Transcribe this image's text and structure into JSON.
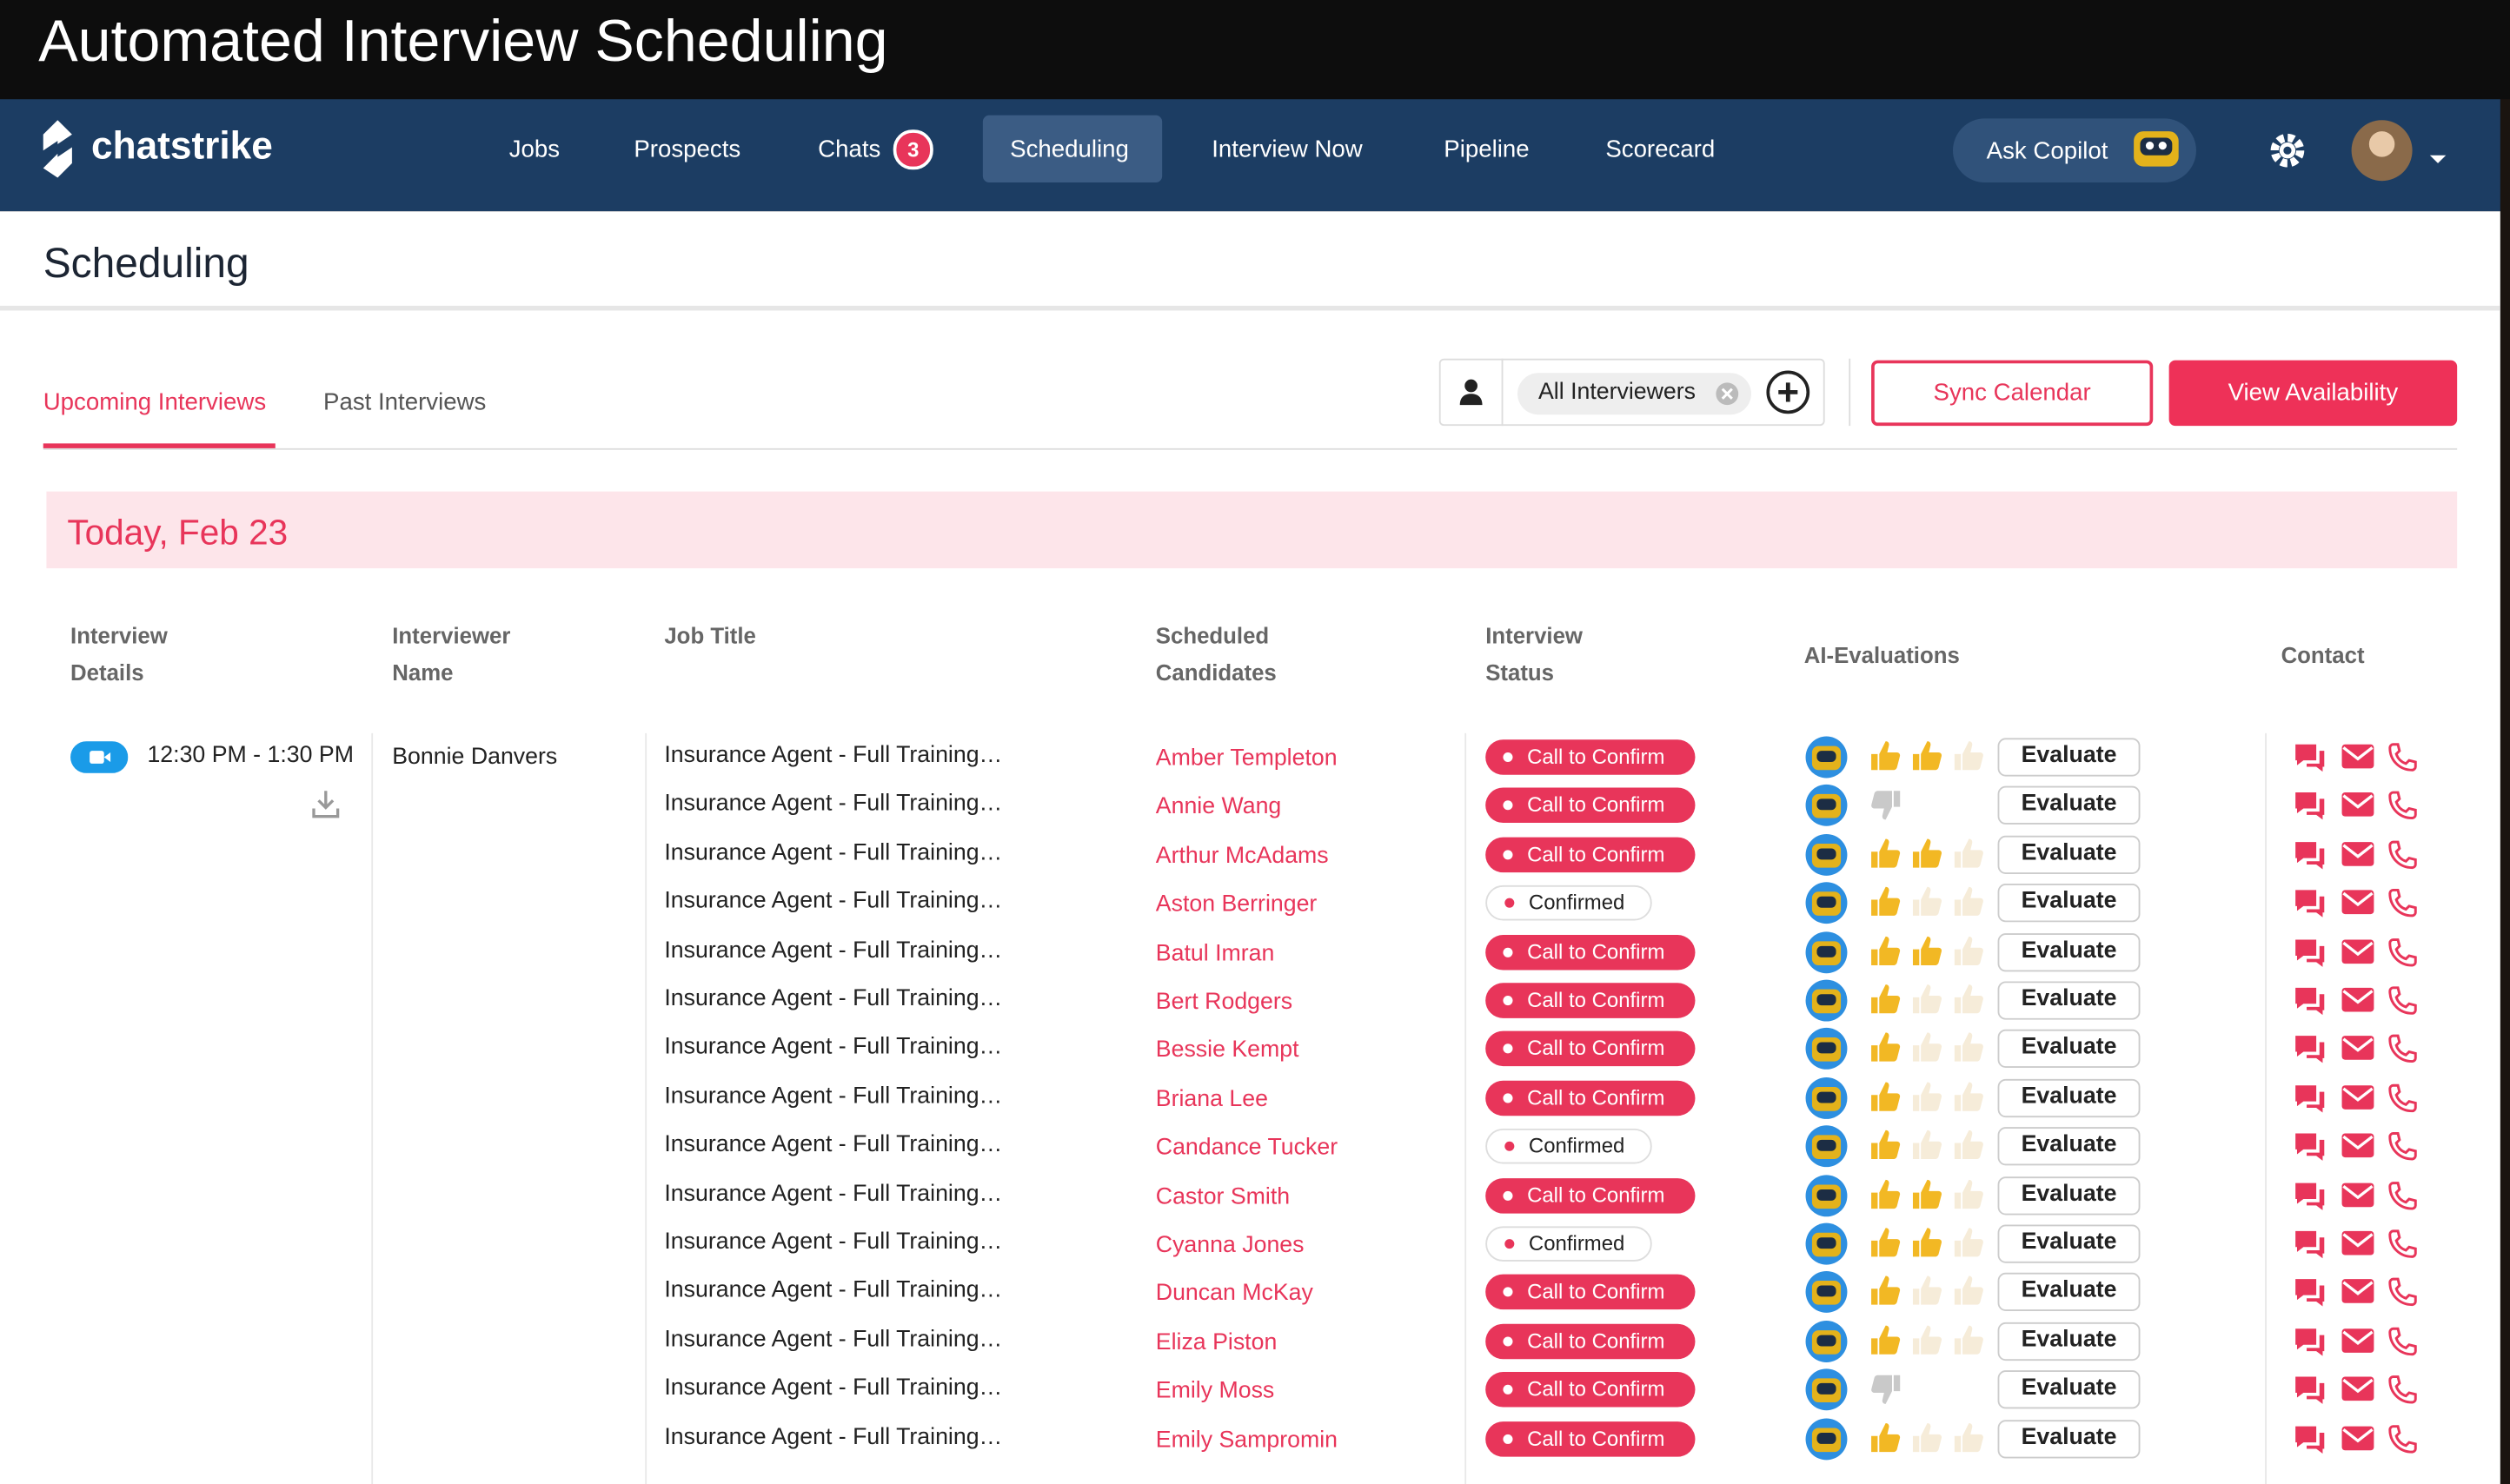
{
  "header": {
    "title": "Automated Interview Scheduling"
  },
  "nav": {
    "brand": "chatstrike",
    "items": [
      "Jobs",
      "Prospects",
      "Chats",
      "Scheduling",
      "Interview Now",
      "Pipeline",
      "Scorecard"
    ],
    "chats_badge": 3,
    "copilot": "Ask Copilot"
  },
  "page": {
    "title": "Scheduling",
    "tabs": [
      "Upcoming Interviews",
      "Past Interviews"
    ],
    "filter": "All Interviewers",
    "buttons": [
      "Sync Calendar",
      "View Availability"
    ],
    "date": "Today, Feb 23"
  },
  "table": {
    "columns": [
      "Interview Details",
      "Interviewer Name",
      "Job Title",
      "Scheduled Candidates",
      "Interview Status",
      "AI-Evaluations",
      "Contact"
    ],
    "interview": {
      "time": "12:30 PM - 1:30 PM",
      "interviewer": "Bonnie Danvers"
    },
    "evaluate": "Evaluate",
    "rows": [
      {
        "job": "Insurance Agent - Full Training…",
        "candidate": "Amber Templeton",
        "status": "Call to Confirm",
        "thumbs_up": 2
      },
      {
        "job": "Insurance Agent - Full Training…",
        "candidate": "Annie Wang",
        "status": "Call to Confirm",
        "thumbs_down": 1
      },
      {
        "job": "Insurance Agent - Full Training…",
        "candidate": "Arthur McAdams",
        "status": "Call to Confirm",
        "thumbs_up": 2
      },
      {
        "job": "Insurance Agent - Full Training…",
        "candidate": "Aston Berringer",
        "status": "Confirmed",
        "thumbs_up": 1
      },
      {
        "job": "Insurance Agent - Full Training…",
        "candidate": "Batul Imran",
        "status": "Call to Confirm",
        "thumbs_up": 2
      },
      {
        "job": "Insurance Agent - Full Training…",
        "candidate": "Bert Rodgers",
        "status": "Call to Confirm",
        "thumbs_up": 1
      },
      {
        "job": "Insurance Agent - Full Training…",
        "candidate": "Bessie Kempt",
        "status": "Call to Confirm",
        "thumbs_up": 1
      },
      {
        "job": "Insurance Agent - Full Training…",
        "candidate": "Briana Lee",
        "status": "Call to Confirm",
        "thumbs_up": 1
      },
      {
        "job": "Insurance Agent - Full Training…",
        "candidate": "Candance Tucker",
        "status": "Confirmed",
        "thumbs_up": 1
      },
      {
        "job": "Insurance Agent - Full Training…",
        "candidate": "Castor Smith",
        "status": "Call to Confirm",
        "thumbs_up": 2
      },
      {
        "job": "Insurance Agent - Full Training…",
        "candidate": "Cyanna Jones",
        "status": "Confirmed",
        "thumbs_up": 2
      },
      {
        "job": "Insurance Agent - Full Training…",
        "candidate": "Duncan McKay",
        "status": "Call to Confirm",
        "thumbs_up": 1
      },
      {
        "job": "Insurance Agent - Full Training…",
        "candidate": "Eliza Piston",
        "status": "Call to Confirm",
        "thumbs_up": 1
      },
      {
        "job": "Insurance Agent - Full Training…",
        "candidate": "Emily Moss",
        "status": "Call to Confirm",
        "thumbs_down": 1
      },
      {
        "job": "Insurance Agent - Full Training…",
        "candidate": "Emily Sampromin",
        "status": "Call to Confirm",
        "thumbs_up": 1
      }
    ]
  }
}
